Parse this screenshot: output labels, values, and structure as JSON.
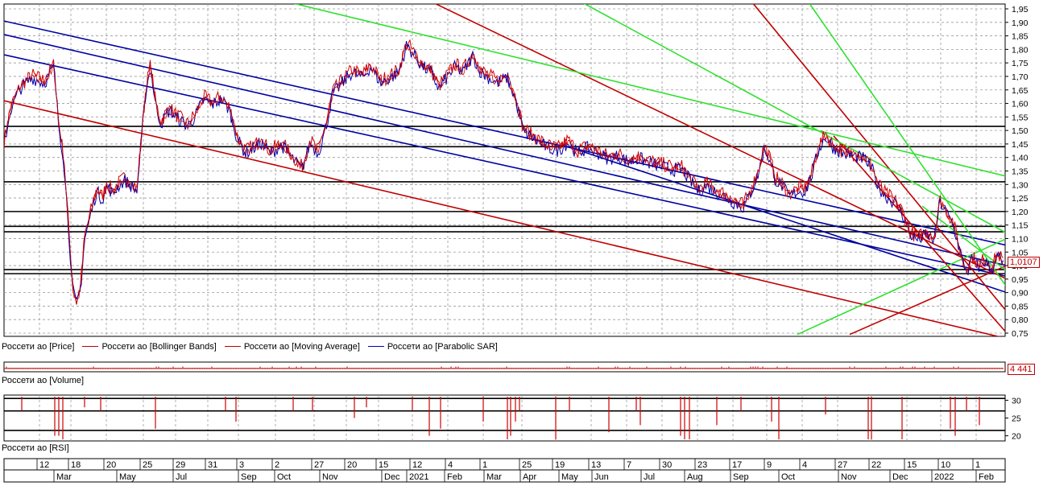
{
  "chart_data": {
    "type": "line",
    "instrument": "Россети ао",
    "price_panel": {
      "y_ticks": [
        "1,95",
        "1,90",
        "1,85",
        "1,80",
        "1,75",
        "1,70",
        "1,65",
        "1,60",
        "1,55",
        "1,50",
        "1,45",
        "1,40",
        "1,35",
        "1,30",
        "1,25",
        "1,20",
        "1,15",
        "1,10",
        "1,05",
        "1,00",
        "0,95",
        "0,90",
        "0,85",
        "0,80",
        "0,75"
      ],
      "ylim": [
        0.75,
        1.95
      ],
      "last_value_label": "1,0107",
      "series": [
        {
          "name": "Россети ао [Price]",
          "color": "#0000a0"
        },
        {
          "name": "Россети ао [Bollinger Bands]",
          "color": "#c00000"
        },
        {
          "name": "Россети ао [Moving Average]",
          "color": "#c00000"
        },
        {
          "name": "Россети ао [Parabolic SAR]",
          "color": "#0000c0"
        }
      ],
      "price_path": [
        [
          0,
          1.45
        ],
        [
          8,
          1.58
        ],
        [
          20,
          1.66
        ],
        [
          35,
          1.7
        ],
        [
          50,
          1.68
        ],
        [
          62,
          1.74
        ],
        [
          68,
          1.52
        ],
        [
          74,
          1.4
        ],
        [
          80,
          1.15
        ],
        [
          85,
          0.92
        ],
        [
          90,
          0.86
        ],
        [
          95,
          0.92
        ],
        [
          100,
          1.1
        ],
        [
          108,
          1.2
        ],
        [
          115,
          1.28
        ],
        [
          122,
          1.25
        ],
        [
          128,
          1.3
        ],
        [
          135,
          1.27
        ],
        [
          142,
          1.3
        ],
        [
          150,
          1.32
        ],
        [
          158,
          1.3
        ],
        [
          165,
          1.28
        ],
        [
          170,
          1.45
        ],
        [
          176,
          1.65
        ],
        [
          182,
          1.74
        ],
        [
          188,
          1.6
        ],
        [
          195,
          1.53
        ],
        [
          205,
          1.58
        ],
        [
          215,
          1.55
        ],
        [
          228,
          1.52
        ],
        [
          238,
          1.56
        ],
        [
          248,
          1.62
        ],
        [
          258,
          1.6
        ],
        [
          270,
          1.62
        ],
        [
          280,
          1.58
        ],
        [
          290,
          1.47
        ],
        [
          300,
          1.42
        ],
        [
          310,
          1.44
        ],
        [
          320,
          1.46
        ],
        [
          330,
          1.42
        ],
        [
          345,
          1.45
        ],
        [
          358,
          1.4
        ],
        [
          370,
          1.36
        ],
        [
          380,
          1.46
        ],
        [
          390,
          1.42
        ],
        [
          400,
          1.52
        ],
        [
          408,
          1.64
        ],
        [
          420,
          1.68
        ],
        [
          432,
          1.72
        ],
        [
          445,
          1.7
        ],
        [
          455,
          1.74
        ],
        [
          468,
          1.68
        ],
        [
          480,
          1.7
        ],
        [
          490,
          1.72
        ],
        [
          500,
          1.82
        ],
        [
          510,
          1.78
        ],
        [
          520,
          1.74
        ],
        [
          530,
          1.72
        ],
        [
          540,
          1.66
        ],
        [
          550,
          1.7
        ],
        [
          560,
          1.74
        ],
        [
          570,
          1.72
        ],
        [
          582,
          1.78
        ],
        [
          592,
          1.72
        ],
        [
          602,
          1.7
        ],
        [
          612,
          1.68
        ],
        [
          625,
          1.7
        ],
        [
          635,
          1.62
        ],
        [
          645,
          1.5
        ],
        [
          655,
          1.48
        ],
        [
          665,
          1.46
        ],
        [
          675,
          1.44
        ],
        [
          688,
          1.43
        ],
        [
          700,
          1.46
        ],
        [
          712,
          1.42
        ],
        [
          725,
          1.44
        ],
        [
          738,
          1.42
        ],
        [
          750,
          1.4
        ],
        [
          762,
          1.41
        ],
        [
          775,
          1.39
        ],
        [
          790,
          1.4
        ],
        [
          805,
          1.38
        ],
        [
          818,
          1.37
        ],
        [
          830,
          1.36
        ],
        [
          842,
          1.36
        ],
        [
          852,
          1.32
        ],
        [
          862,
          1.28
        ],
        [
          872,
          1.3
        ],
        [
          882,
          1.28
        ],
        [
          895,
          1.26
        ],
        [
          905,
          1.24
        ],
        [
          918,
          1.22
        ],
        [
          928,
          1.28
        ],
        [
          936,
          1.34
        ],
        [
          944,
          1.44
        ],
        [
          950,
          1.4
        ],
        [
          958,
          1.32
        ],
        [
          966,
          1.3
        ],
        [
          975,
          1.26
        ],
        [
          985,
          1.28
        ],
        [
          995,
          1.28
        ],
        [
          1003,
          1.34
        ],
        [
          1012,
          1.44
        ],
        [
          1020,
          1.48
        ],
        [
          1030,
          1.44
        ],
        [
          1042,
          1.42
        ],
        [
          1055,
          1.41
        ],
        [
          1068,
          1.4
        ],
        [
          1078,
          1.36
        ],
        [
          1085,
          1.3
        ],
        [
          1095,
          1.26
        ],
        [
          1105,
          1.24
        ],
        [
          1115,
          1.2
        ],
        [
          1125,
          1.12
        ],
        [
          1135,
          1.1
        ],
        [
          1145,
          1.12
        ],
        [
          1155,
          1.1
        ],
        [
          1162,
          1.24
        ],
        [
          1170,
          1.2
        ],
        [
          1178,
          1.16
        ],
        [
          1185,
          1.08
        ],
        [
          1190,
          1.02
        ],
        [
          1196,
          0.98
        ],
        [
          1202,
          1.03
        ],
        [
          1210,
          1.0
        ],
        [
          1218,
          1.02
        ],
        [
          1226,
          0.99
        ],
        [
          1234,
          1.04
        ],
        [
          1241,
          1.01
        ]
      ],
      "trend_lines": [
        {
          "color": "#0000a0",
          "points": [
            [
              0,
              1.905
            ],
            [
              1245,
              1.075
            ]
          ]
        },
        {
          "color": "#0000a0",
          "points": [
            [
              0,
              1.855
            ],
            [
              1245,
              1.0
            ]
          ]
        },
        {
          "color": "#0000a0",
          "points": [
            [
              0,
              1.78
            ],
            [
              1245,
              0.96
            ]
          ]
        },
        {
          "color": "#0000a0",
          "points": [
            [
              700,
              1.44
            ],
            [
              1245,
              0.9
            ]
          ]
        },
        {
          "color": "#c00000",
          "points": [
            [
              0,
              1.61
            ],
            [
              1245,
              0.73
            ]
          ]
        },
        {
          "color": "#c00000",
          "points": [
            [
              535,
              1.97
            ],
            [
              1245,
              0.95
            ]
          ]
        },
        {
          "color": "#c00000",
          "points": [
            [
              930,
              1.97
            ],
            [
              1245,
              0.83
            ]
          ]
        },
        {
          "color": "#c00000",
          "points": [
            [
              1050,
              0.745
            ],
            [
              1245,
              1.0
            ]
          ]
        },
        {
          "color": "#c00000",
          "points": [
            [
              1030,
              1.48
            ],
            [
              1245,
              0.75
            ]
          ]
        },
        {
          "color": "#30e030",
          "points": [
            [
              360,
              1.97
            ],
            [
              1245,
              1.33
            ]
          ]
        },
        {
          "color": "#30e030",
          "points": [
            [
              720,
              1.97
            ],
            [
              1245,
              1.12
            ]
          ]
        },
        {
          "color": "#30e030",
          "points": [
            [
              1000,
              1.97
            ],
            [
              1245,
              0.92
            ]
          ]
        },
        {
          "color": "#30e030",
          "points": [
            [
              985,
              0.745
            ],
            [
              1245,
              1.1
            ]
          ]
        },
        {
          "color": "#30e030",
          "points": [
            [
              1140,
              1.22
            ],
            [
              1245,
              0.98
            ]
          ]
        }
      ],
      "horizontal_levels": [
        1.515,
        1.44,
        1.31,
        1.2,
        1.145,
        1.125,
        0.985,
        0.97
      ]
    },
    "volume_panel": {
      "title": "Россети ао [Volume]",
      "last_value_label": "4 441",
      "baseline_value": 4441
    },
    "rsi_panel": {
      "title": "Россети ао [RSI]",
      "y_ticks": [
        "30",
        "25",
        "20"
      ],
      "ylim": [
        19,
        31
      ],
      "levels": [
        30.5,
        27,
        21.5
      ],
      "dips": [
        [
          27,
          27
        ],
        [
          68,
          20
        ],
        [
          73,
          20
        ],
        [
          78,
          19
        ],
        [
          105,
          28
        ],
        [
          125,
          27
        ],
        [
          193,
          22
        ],
        [
          280,
          27
        ],
        [
          293,
          24
        ],
        [
          364,
          27
        ],
        [
          388,
          27
        ],
        [
          440,
          25
        ],
        [
          455,
          28
        ],
        [
          512,
          27
        ],
        [
          533,
          20
        ],
        [
          547,
          22
        ],
        [
          600,
          24
        ],
        [
          630,
          19
        ],
        [
          634,
          20
        ],
        [
          640,
          24
        ],
        [
          645,
          27
        ],
        [
          690,
          19
        ],
        [
          707,
          27
        ],
        [
          756,
          21
        ],
        [
          790,
          27
        ],
        [
          795,
          23
        ],
        [
          845,
          20
        ],
        [
          850,
          19
        ],
        [
          856,
          19
        ],
        [
          890,
          23
        ],
        [
          920,
          27
        ],
        [
          958,
          24
        ],
        [
          967,
          19
        ],
        [
          1025,
          26
        ],
        [
          1078,
          19
        ],
        [
          1082,
          19
        ],
        [
          1120,
          19
        ],
        [
          1180,
          22
        ],
        [
          1186,
          20
        ],
        [
          1200,
          27
        ],
        [
          1216,
          23
        ]
      ]
    },
    "x_axis": {
      "tick_labels": [
        "12",
        "18",
        "20",
        "25",
        "29",
        "31",
        "3",
        "2",
        "27",
        "20",
        "15",
        "12",
        "4",
        "1",
        "25",
        "19",
        "13",
        "7",
        "30",
        "23",
        "17",
        "9",
        "4",
        "27",
        "22",
        "15",
        "10",
        "1"
      ],
      "month_labels": [
        "Mar",
        "May",
        "Jul",
        "Sep",
        "Oct",
        "Nov",
        "Dec",
        "2021",
        "Feb",
        "Mar",
        "Apr",
        "May",
        "Jun",
        "Jul",
        "Aug",
        "Sep",
        "Oct",
        "Nov",
        "Dec",
        "2022",
        "Feb"
      ]
    }
  }
}
